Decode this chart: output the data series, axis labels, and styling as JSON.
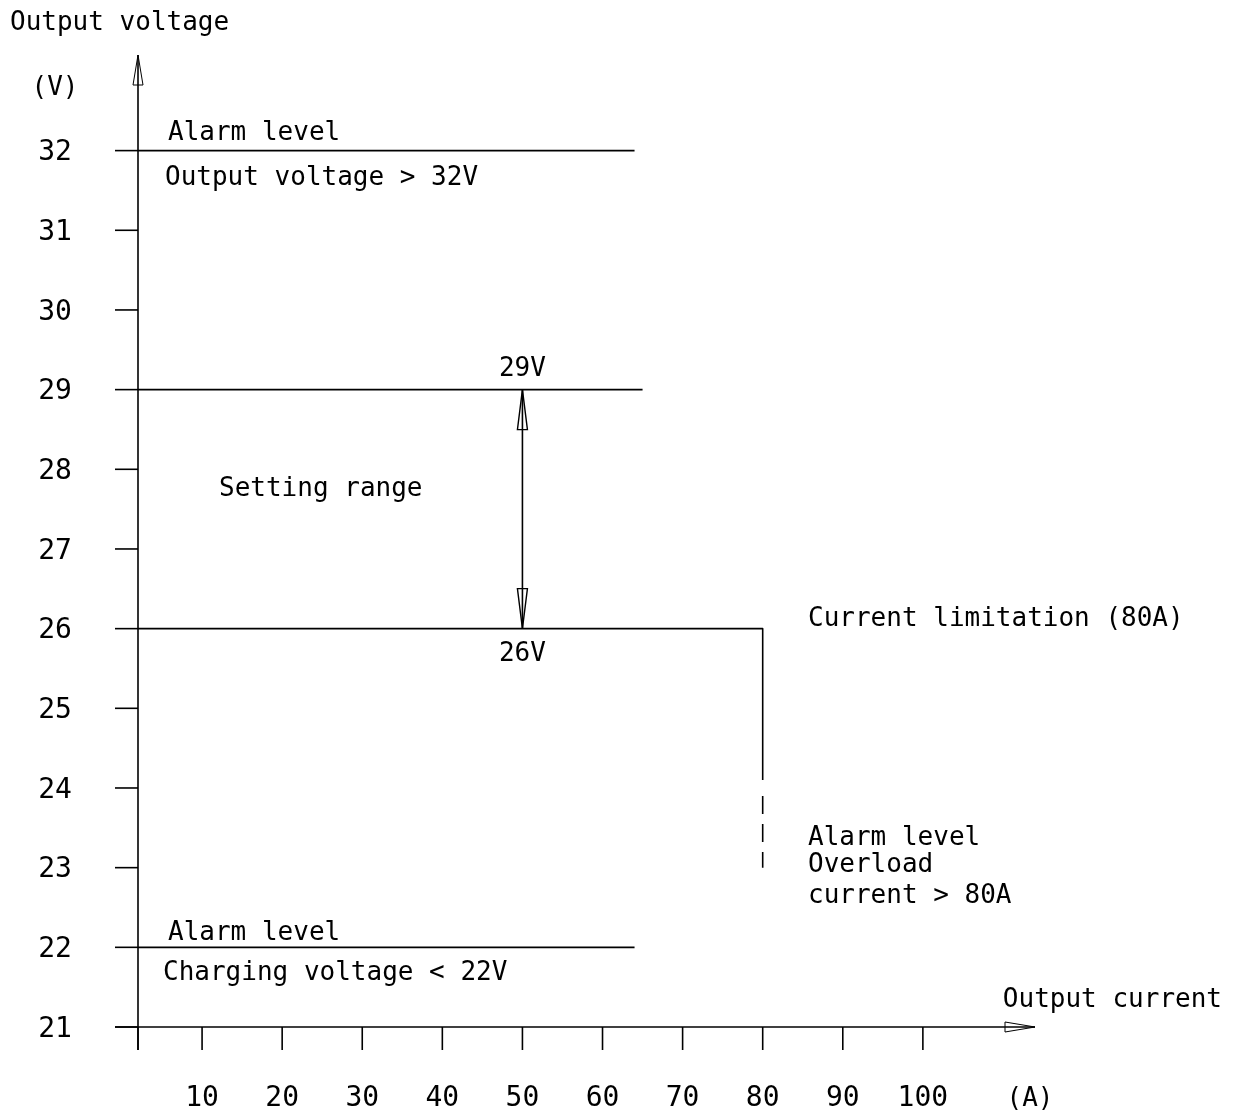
{
  "chart_data": {
    "type": "line",
    "xlabel": "Output current",
    "ylabel": "Output voltage",
    "xlim": [
      2,
      114
    ],
    "ylim": [
      21,
      33.2
    ],
    "xticks": [
      {
        "value": 2,
        "label": null
      },
      10,
      20,
      30,
      40,
      50,
      60,
      70,
      80,
      90,
      100
    ],
    "yticks": [
      21,
      22,
      23,
      24,
      25,
      26,
      27,
      28,
      29,
      30,
      31,
      32
    ],
    "grid": false,
    "series": [
      {
        "color": "#000000",
        "line_style": "solid",
        "x": [
          2,
          64
        ],
        "values": [
          32,
          32
        ]
      },
      {
        "color": "#000000",
        "line_style": "solid",
        "x": [
          2,
          65
        ],
        "values": [
          29,
          29
        ]
      },
      {
        "color": "#000000",
        "line_style": "solid",
        "x": [
          2,
          80,
          80
        ],
        "values": [
          26,
          26,
          24.1
        ]
      },
      {
        "color": "#000000",
        "line_style": "dashed",
        "x": [
          80,
          80
        ],
        "values": [
          23.9,
          23
        ]
      },
      {
        "color": "#000000",
        "line_style": "solid",
        "x": [
          2,
          64
        ],
        "values": [
          22,
          22
        ]
      }
    ],
    "annotations": [
      "Alarm level",
      "Output voltage > 32V",
      {
        "text": "29V",
        "x": 50,
        "y": 29
      },
      "Setting range",
      {
        "text": "26V",
        "x": 50,
        "y": 26
      },
      "Current limitation (80A)",
      "Alarm level",
      "Overload",
      "current > 80A",
      "Alarm level",
      "Charging voltage < 22V",
      "(V)",
      "(A)"
    ]
  }
}
